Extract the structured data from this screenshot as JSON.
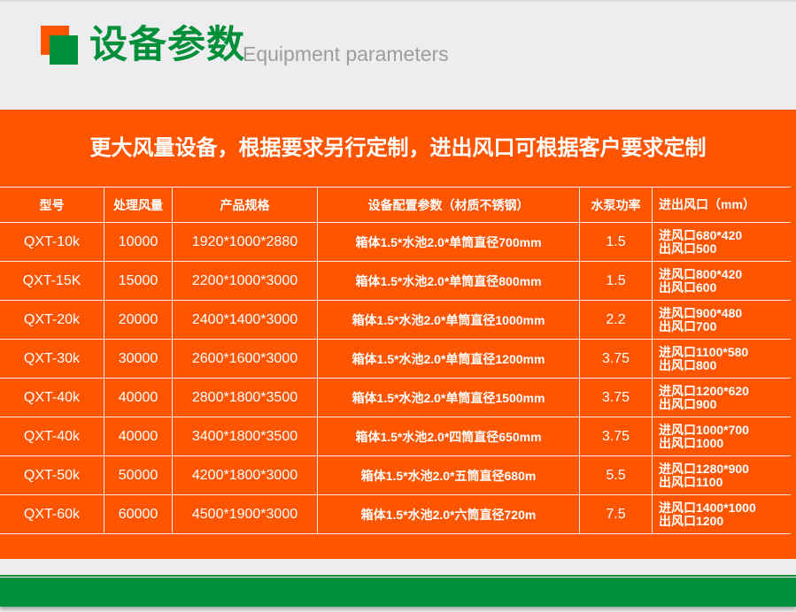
{
  "header": {
    "title": "设备参数",
    "subtitle": "Equipment parameters",
    "colors": {
      "accent_orange": "#ff5400",
      "accent_green": "#008f39"
    }
  },
  "banner": "更大风量设备，根据要求另行定制，进出风口可根据客户要求定制",
  "table": {
    "headers": [
      "型号",
      "处理风量",
      "产品规格",
      "设备配置参数（材质不锈钢）",
      "水泵功率",
      "进出风口（mm）"
    ],
    "rows": [
      {
        "model": "QXT-10k",
        "airflow": "10000",
        "size": "1920*1000*2880",
        "config": "箱体1.5*水池2.0*单筒直径700mm",
        "pump": "1.5",
        "inlet": "进风口680*420",
        "outlet": "出风口500"
      },
      {
        "model": "QXT-15K",
        "airflow": "15000",
        "size": "2200*1000*3000",
        "config": "箱体1.5*水池2.0*单筒直径800mm",
        "pump": "1.5",
        "inlet": "进风口800*420",
        "outlet": "出风口600"
      },
      {
        "model": "QXT-20k",
        "airflow": "20000",
        "size": "2400*1400*3000",
        "config": "箱体1.5*水池2.0*单筒直径1000mm",
        "pump": "2.2",
        "inlet": "进风口900*480",
        "outlet": "出风口700"
      },
      {
        "model": "QXT-30k",
        "airflow": "30000",
        "size": "2600*1600*3000",
        "config": "箱体1.5*水池2.0*单筒直径1200mm",
        "pump": "3.75",
        "inlet": "进风口1100*580",
        "outlet": "出风口800"
      },
      {
        "model": "QXT-40k",
        "airflow": "40000",
        "size": "2800*1800*3500",
        "config": "箱体1.5*水池2.0*单筒直径1500mm",
        "pump": "3.75",
        "inlet": "进风口1200*620",
        "outlet": "出风口900"
      },
      {
        "model": "QXT-40k",
        "airflow": "40000",
        "size": "3400*1800*3500",
        "config": "箱体1.5*水池2.0*四筒直径650mm",
        "pump": "3.75",
        "inlet": "进风口1000*700",
        "outlet": "出风口1000"
      },
      {
        "model": "QXT-50k",
        "airflow": "50000",
        "size": "4200*1800*3000",
        "config": "箱体1.5*水池2.0*五筒直径680m",
        "pump": "5.5",
        "inlet": "进风口1280*900",
        "outlet": "出风口1100"
      },
      {
        "model": "QXT-60k",
        "airflow": "60000",
        "size": "4500*1900*3000",
        "config": "箱体1.5*水池2.0*六筒直径720m",
        "pump": "7.5",
        "inlet": "进风口1400*1000",
        "outlet": "出风口1200"
      }
    ]
  }
}
